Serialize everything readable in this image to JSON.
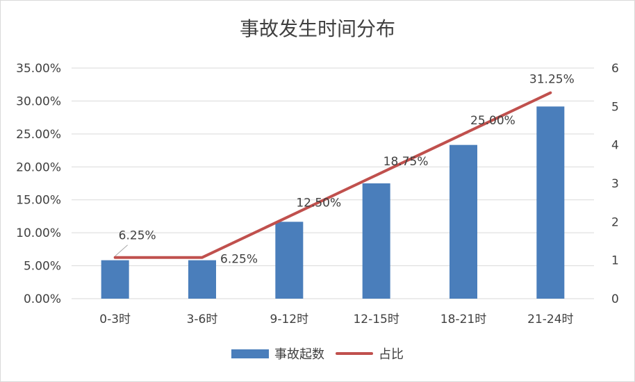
{
  "chart_data": {
    "type": "bar+line",
    "title": "事故发生时间分布",
    "categories": [
      "0-3时",
      "3-6时",
      "9-12时",
      "12-15时",
      "18-21时",
      "21-24时"
    ],
    "series": [
      {
        "name": "事故起数",
        "type": "bar",
        "axis": "right",
        "values": [
          1,
          1,
          2,
          3,
          4,
          5
        ]
      },
      {
        "name": "占比",
        "type": "line",
        "axis": "left",
        "values": [
          6.25,
          6.25,
          12.5,
          18.75,
          25.0,
          31.25
        ],
        "labels": [
          "6.25%",
          "6.25%",
          "12.50%",
          "18.75%",
          "25.00%",
          "31.25%"
        ]
      }
    ],
    "y_left": {
      "ylim": [
        0,
        35
      ],
      "ticks": [
        "0.00%",
        "5.00%",
        "10.00%",
        "15.00%",
        "20.00%",
        "25.00%",
        "30.00%",
        "35.00%"
      ]
    },
    "y_right": {
      "ylim": [
        0,
        6
      ],
      "ticks": [
        "0",
        "1",
        "2",
        "3",
        "4",
        "5",
        "6"
      ]
    },
    "grid": true,
    "legend": "bottom",
    "colors": {
      "bar": "#4a7ebb",
      "line": "#c0504d",
      "grid": "#d9d9d9",
      "text": "#404040"
    }
  }
}
